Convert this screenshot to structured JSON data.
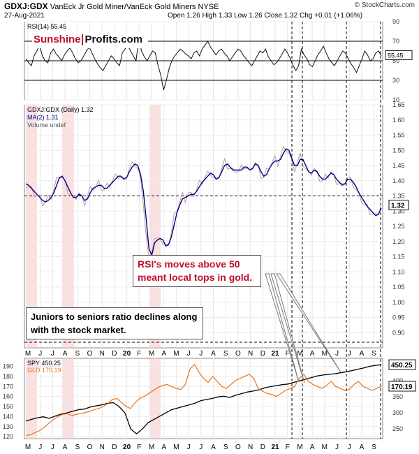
{
  "header": {
    "symbol": "GDXJ:GDX",
    "description": "VanEck Jr Gold Miner/VanEck Gold Miners",
    "exchange": "NYSE",
    "date": "27-Aug-2021",
    "ohlc": "Open 1.26  High 1.33  Low 1.26  Close 1.32  Chg +0.01 (+1.06%)",
    "watermark": "© StockCharts.com"
  },
  "logo": {
    "part1": "Sunshine",
    "part2": "Profits.com"
  },
  "annotations": {
    "rsi": "RSI's moves above 50 meant local tops in gold.",
    "juniors": "Juniors to seniors ratio declines along with the stock market."
  },
  "colors": {
    "black": "#000000",
    "navy": "#00008b",
    "orange": "#e8731a",
    "shade": "#f7c6c6",
    "annotation_red": "#c0102a"
  },
  "x_axis_months": [
    "M",
    "J",
    "J",
    "A",
    "S",
    "O",
    "N",
    "D",
    "20",
    "F",
    "M",
    "A",
    "M",
    "J",
    "J",
    "A",
    "S",
    "O",
    "N",
    "D",
    "21",
    "F",
    "M",
    "A",
    "M",
    "J",
    "J",
    "A",
    "S"
  ],
  "chart_data": [
    {
      "type": "line",
      "title": "RSI(14)",
      "series": [
        {
          "name": "RSI(14)",
          "last": 55.45,
          "values": [
            52,
            48,
            45,
            55,
            60,
            66,
            55,
            50,
            48,
            58,
            62,
            57,
            54,
            50,
            56,
            60,
            63,
            58,
            52,
            48,
            50,
            55,
            60,
            64,
            58,
            52,
            47,
            43,
            40,
            45,
            50,
            55,
            52,
            48,
            45,
            58,
            62,
            66,
            60,
            55,
            50,
            72,
            60,
            54,
            50,
            55,
            60,
            58,
            45,
            35,
            20,
            30,
            42,
            50,
            55,
            58,
            62,
            60,
            57,
            55,
            52,
            58,
            60,
            55,
            62,
            66,
            70,
            64,
            60,
            56,
            60,
            62,
            58,
            55,
            50,
            54,
            58,
            62,
            60,
            55,
            52,
            48,
            45,
            50,
            55,
            60,
            58,
            62,
            54,
            50,
            46,
            48,
            52,
            57,
            62,
            58,
            52,
            45,
            40,
            45,
            62,
            56,
            52,
            46,
            44,
            50,
            56,
            60,
            65,
            58,
            52,
            48,
            45,
            50,
            55,
            60,
            58,
            52,
            47,
            43,
            38,
            45,
            52,
            60,
            56,
            50,
            52,
            58,
            60,
            55
          ]
        }
      ],
      "ylim": [
        10,
        90
      ],
      "y_ticks": [
        10,
        30,
        50,
        70,
        90
      ],
      "reference_lines": [
        30,
        50,
        70
      ]
    },
    {
      "type": "line",
      "title": "GDXJ:GDX (Daily)",
      "series": [
        {
          "name": "GDXJ:GDX (Daily)",
          "last": 1.32,
          "values": [
            1.39,
            1.38,
            1.37,
            1.36,
            1.35,
            1.34,
            1.33,
            1.33,
            1.34,
            1.35,
            1.37,
            1.4,
            1.42,
            1.41,
            1.39,
            1.37,
            1.35,
            1.34,
            1.35,
            1.36,
            1.34,
            1.33,
            1.35,
            1.37,
            1.38,
            1.38,
            1.39,
            1.38,
            1.37,
            1.38,
            1.39,
            1.4,
            1.41,
            1.42,
            1.41,
            1.4,
            1.42,
            1.44,
            1.45,
            1.46,
            1.44,
            1.4,
            1.33,
            1.22,
            1.13,
            1.18,
            1.21,
            1.2,
            1.22,
            1.19,
            1.18,
            1.2,
            1.23,
            1.28,
            1.31,
            1.33,
            1.35,
            1.34,
            1.36,
            1.35,
            1.36,
            1.37,
            1.39,
            1.4,
            1.41,
            1.42,
            1.43,
            1.41,
            1.4,
            1.42,
            1.44,
            1.46,
            1.45,
            1.44,
            1.43,
            1.44,
            1.43,
            1.44,
            1.45,
            1.44,
            1.43,
            1.45,
            1.46,
            1.44,
            1.42,
            1.41,
            1.43,
            1.45,
            1.46,
            1.47,
            1.46,
            1.48,
            1.5,
            1.51,
            1.49,
            1.46,
            1.44,
            1.46,
            1.48,
            1.46,
            1.44,
            1.42,
            1.43,
            1.44,
            1.42,
            1.41,
            1.4,
            1.41,
            1.42,
            1.43,
            1.41,
            1.4,
            1.39,
            1.38,
            1.4,
            1.41,
            1.4,
            1.39,
            1.37,
            1.35,
            1.34,
            1.32,
            1.31,
            1.3,
            1.29,
            1.28,
            1.3,
            1.32
          ]
        },
        {
          "name": "MA(2)",
          "last": 1.31
        },
        {
          "name": "Volume undef"
        }
      ],
      "ylim": [
        0.85,
        1.65
      ],
      "y_ticks": [
        0.9,
        0.95,
        1.0,
        1.05,
        1.1,
        1.15,
        1.2,
        1.25,
        1.3,
        1.35,
        1.4,
        1.45,
        1.5,
        1.55,
        1.6,
        1.65
      ],
      "reference_lines": [
        1.35
      ]
    },
    {
      "type": "line",
      "title": "SPY / GLD",
      "series": [
        {
          "name": "SPY",
          "last": 450.25,
          "axis": "right",
          "values": [
            275,
            280,
            285,
            288,
            283,
            290,
            296,
            300,
            305,
            310,
            312,
            318,
            322,
            325,
            330,
            332,
            320,
            300,
            250,
            235,
            250,
            270,
            280,
            290,
            300,
            310,
            315,
            320,
            325,
            330,
            338,
            342,
            345,
            350,
            352,
            348,
            355,
            360,
            365,
            368,
            372,
            378,
            382,
            385,
            388,
            390,
            395,
            400,
            405,
            410,
            415,
            418,
            420,
            422,
            425,
            428,
            432,
            436,
            440,
            445,
            448,
            450
          ]
        },
        {
          "name": "GLD",
          "last": 170.19,
          "axis": "left",
          "values": [
            121,
            122,
            124,
            126,
            129,
            133,
            137,
            140,
            142,
            143,
            141,
            142,
            143,
            144,
            145,
            147,
            148,
            150,
            153,
            157,
            158,
            154,
            150,
            148,
            154,
            158,
            160,
            163,
            166,
            169,
            171,
            172,
            170,
            168,
            167,
            172,
            187,
            192,
            184,
            178,
            174,
            180,
            175,
            170,
            168,
            172,
            176,
            178,
            180,
            182,
            178,
            168,
            165,
            163,
            162,
            160,
            163,
            166,
            168,
            170,
            178,
            182,
            175,
            172,
            170,
            168,
            171,
            175,
            170,
            168,
            166,
            167,
            172,
            175,
            170,
            168,
            166,
            168,
            170
          ]
        }
      ],
      "ylim": [
        118,
        198
      ],
      "y_ticks_left": [
        120,
        130,
        140,
        150,
        160,
        170,
        180,
        190
      ],
      "y_ticks_right": [
        250,
        300,
        350,
        400,
        450
      ]
    }
  ]
}
